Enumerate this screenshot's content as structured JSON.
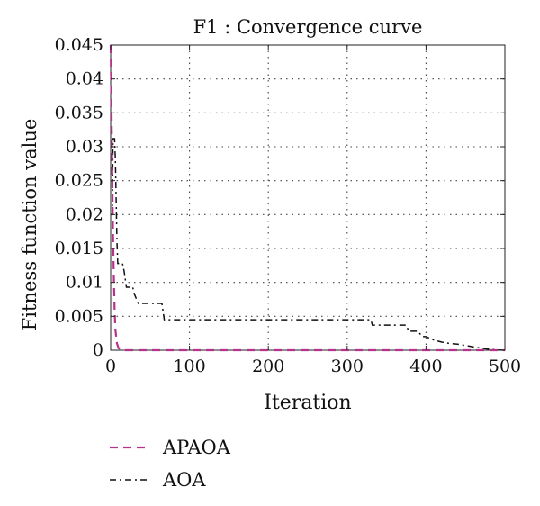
{
  "chart_data": {
    "type": "line",
    "title": "F1 : Convergence curve",
    "xlabel": "Iteration",
    "ylabel": "Fitness function value",
    "xlim": [
      0,
      500
    ],
    "ylim": [
      0,
      0.045
    ],
    "xticks": [
      0,
      100,
      200,
      300,
      400,
      500
    ],
    "xtick_labels": [
      "0",
      "100",
      "200",
      "300",
      "400",
      "500"
    ],
    "yticks": [
      0,
      0.005,
      0.01,
      0.015,
      0.02,
      0.025,
      0.03,
      0.035,
      0.04,
      0.045
    ],
    "ytick_labels": [
      "0",
      "0.005",
      "0.01",
      "0.015",
      "0.02",
      "0.025",
      "0.03",
      "0.035",
      "0.04",
      "0.045"
    ],
    "grid": true,
    "legend_position": "below",
    "series": [
      {
        "name": "APAOA",
        "color": "#b5338a",
        "style": "dashed",
        "x": [
          0,
          1,
          2,
          3,
          4,
          5,
          6,
          8,
          10,
          15,
          500
        ],
        "y": [
          0.045,
          0.036,
          0.026,
          0.017,
          0.011,
          0.006,
          0.003,
          0.001,
          0.0003,
          0.0,
          0.0
        ]
      },
      {
        "name": "AOA",
        "color": "#111111",
        "style": "dashdot",
        "x": [
          0,
          2,
          3,
          5,
          6,
          7,
          8,
          9,
          10,
          15,
          17,
          20,
          28,
          30,
          35,
          65,
          68,
          330,
          332,
          375,
          378,
          390,
          395,
          400,
          410,
          420,
          430,
          440,
          450,
          460,
          470,
          480,
          490,
          500
        ],
        "y": [
          0.02,
          0.02,
          0.0312,
          0.0312,
          0.028,
          0.022,
          0.016,
          0.0128,
          0.0128,
          0.0128,
          0.0117,
          0.0093,
          0.0093,
          0.0083,
          0.0069,
          0.0069,
          0.0045,
          0.0045,
          0.0037,
          0.0037,
          0.0028,
          0.0028,
          0.002,
          0.002,
          0.0015,
          0.0012,
          0.001,
          0.0009,
          0.0007,
          0.0005,
          0.0003,
          0.00015,
          5e-05,
          0.0
        ]
      }
    ]
  }
}
